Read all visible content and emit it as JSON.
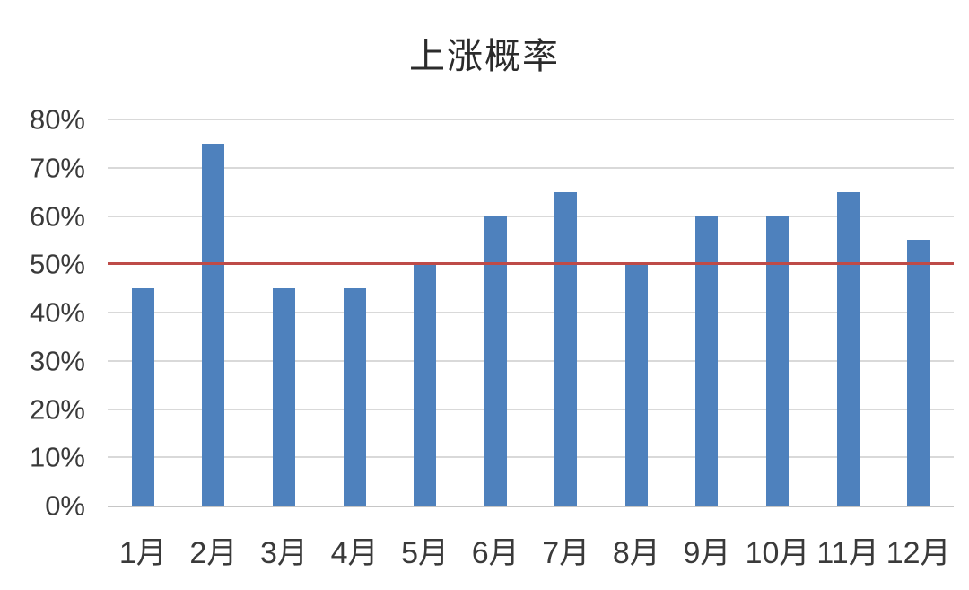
{
  "chart_data": {
    "type": "bar",
    "title": "上涨概率",
    "categories": [
      "1月",
      "2月",
      "3月",
      "4月",
      "5月",
      "6月",
      "7月",
      "8月",
      "9月",
      "10月",
      "11月",
      "12月"
    ],
    "values": [
      45,
      75,
      45,
      45,
      50,
      60,
      65,
      50,
      60,
      60,
      65,
      55
    ],
    "unit": "%",
    "xlabel": "",
    "ylabel": "",
    "ylim": [
      0,
      80
    ],
    "ytick_step": 10,
    "ytick_labels": [
      "0%",
      "10%",
      "20%",
      "30%",
      "40%",
      "50%",
      "60%",
      "70%",
      "80%"
    ],
    "grid": true,
    "legend": "none",
    "reference_line": {
      "value": 50,
      "label": "50%"
    },
    "colors": {
      "bar": "#4e81bd",
      "reference_line": "#be4b48",
      "gridline": "#d9d9d9",
      "axis_line": "#c6c6c6",
      "text": "#3a3a3a",
      "title_text": "#2b2b2b",
      "background": "#ffffff"
    }
  }
}
